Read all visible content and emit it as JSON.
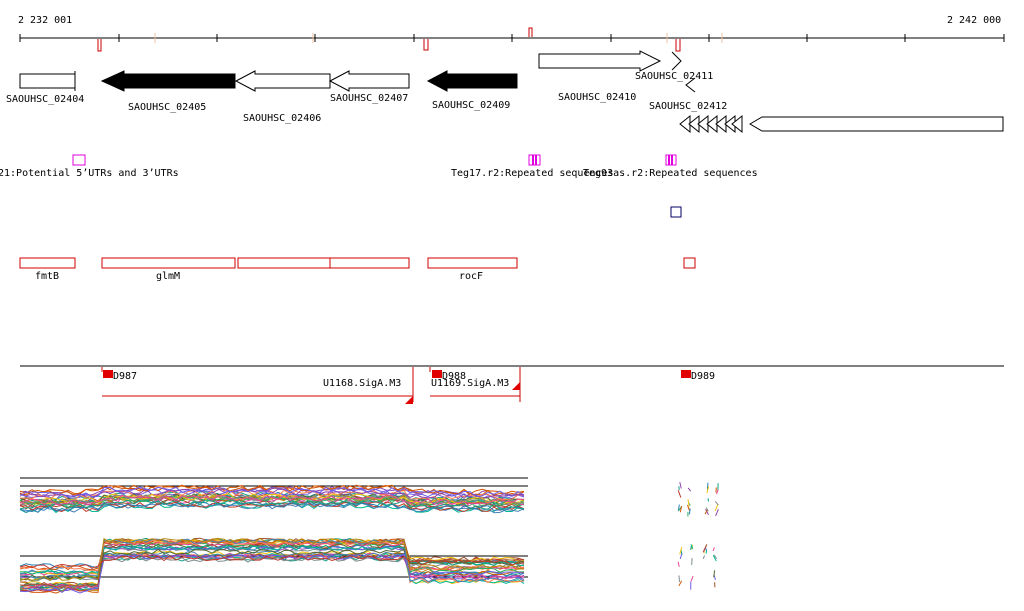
{
  "ruler": {
    "start_label": "2 232 001",
    "end_label": "2 242 000"
  },
  "genes": [
    {
      "id": "SAOUHSC_02404",
      "strand": "+",
      "fill": "white"
    },
    {
      "id": "SAOUHSC_02405",
      "strand": "-",
      "fill": "black"
    },
    {
      "id": "SAOUHSC_02406",
      "strand": "-",
      "fill": "white"
    },
    {
      "id": "SAOUHSC_02407",
      "strand": "-",
      "fill": "white"
    },
    {
      "id": "SAOUHSC_02409",
      "strand": "-",
      "fill": "black"
    },
    {
      "id": "SAOUHSC_02410",
      "strand": "+",
      "fill": "white"
    },
    {
      "id": "SAOUHSC_02411",
      "strand": "+",
      "fill": "white"
    },
    {
      "id": "SAOUHSC_02412",
      "strand": "-",
      "fill": "white"
    }
  ],
  "repeats": [
    {
      "label": "21:Potential 5’UTRs and 3’UTRs"
    },
    {
      "label": "Teg17.r2:Repeated sequences"
    },
    {
      "label": "Teg93as.r2:Repeated sequences"
    }
  ],
  "operons": [
    {
      "label": "fmtB"
    },
    {
      "label": "glmM"
    },
    {
      "label": "rocF"
    }
  ],
  "promoters": [
    {
      "label": "D987"
    },
    {
      "label": "U1168.SigA.M3"
    },
    {
      "label": "D988"
    },
    {
      "label": "U1169.SigA.M3"
    },
    {
      "label": "D989"
    }
  ],
  "colors": {
    "axis": "#000000",
    "feature_red": "#d00000",
    "repeat_magenta": "#e000e0",
    "small_box": "#000066"
  }
}
